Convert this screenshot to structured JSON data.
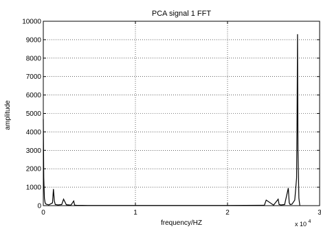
{
  "chart_data": {
    "type": "line",
    "title": "PCA signal 1 FFT",
    "xlabel": "frequency/HZ",
    "ylabel": "amplitude",
    "x_exponent_label": "x 10",
    "x_exponent_power": "4",
    "xlim": [
      0,
      3
    ],
    "ylim": [
      0,
      10000
    ],
    "grid": true,
    "x_ticks": [
      0,
      1,
      2,
      3
    ],
    "x_tick_labels": [
      "0",
      "1",
      "2",
      "3"
    ],
    "y_ticks": [
      0,
      1000,
      2000,
      3000,
      4000,
      5000,
      6000,
      7000,
      8000,
      9000,
      10000
    ],
    "y_tick_labels": [
      "0",
      "1000",
      "2000",
      "3000",
      "4000",
      "5000",
      "6000",
      "7000",
      "8000",
      "9000",
      "10000"
    ],
    "line_color": "#000000",
    "series": [
      {
        "x": [
          0.0,
          0.005,
          0.012,
          0.02,
          0.03,
          0.06,
          0.1,
          0.11,
          0.12,
          0.13,
          0.16,
          0.2,
          0.22,
          0.25,
          0.3,
          0.33,
          0.34,
          0.36,
          0.5,
          1.0,
          1.5,
          2.0,
          2.4,
          2.42,
          2.5,
          2.55,
          2.56,
          2.58,
          2.62,
          2.66,
          2.67,
          2.68,
          2.7,
          2.73,
          2.75,
          2.755,
          2.76,
          2.765,
          2.775,
          2.785
        ],
        "y": [
          4700,
          1500,
          400,
          150,
          80,
          40,
          150,
          900,
          250,
          60,
          40,
          60,
          350,
          50,
          30,
          250,
          30,
          20,
          10,
          10,
          10,
          10,
          20,
          300,
          30,
          350,
          60,
          40,
          60,
          950,
          150,
          60,
          80,
          300,
          1500,
          4700,
          9300,
          3000,
          400,
          0
        ]
      }
    ]
  }
}
